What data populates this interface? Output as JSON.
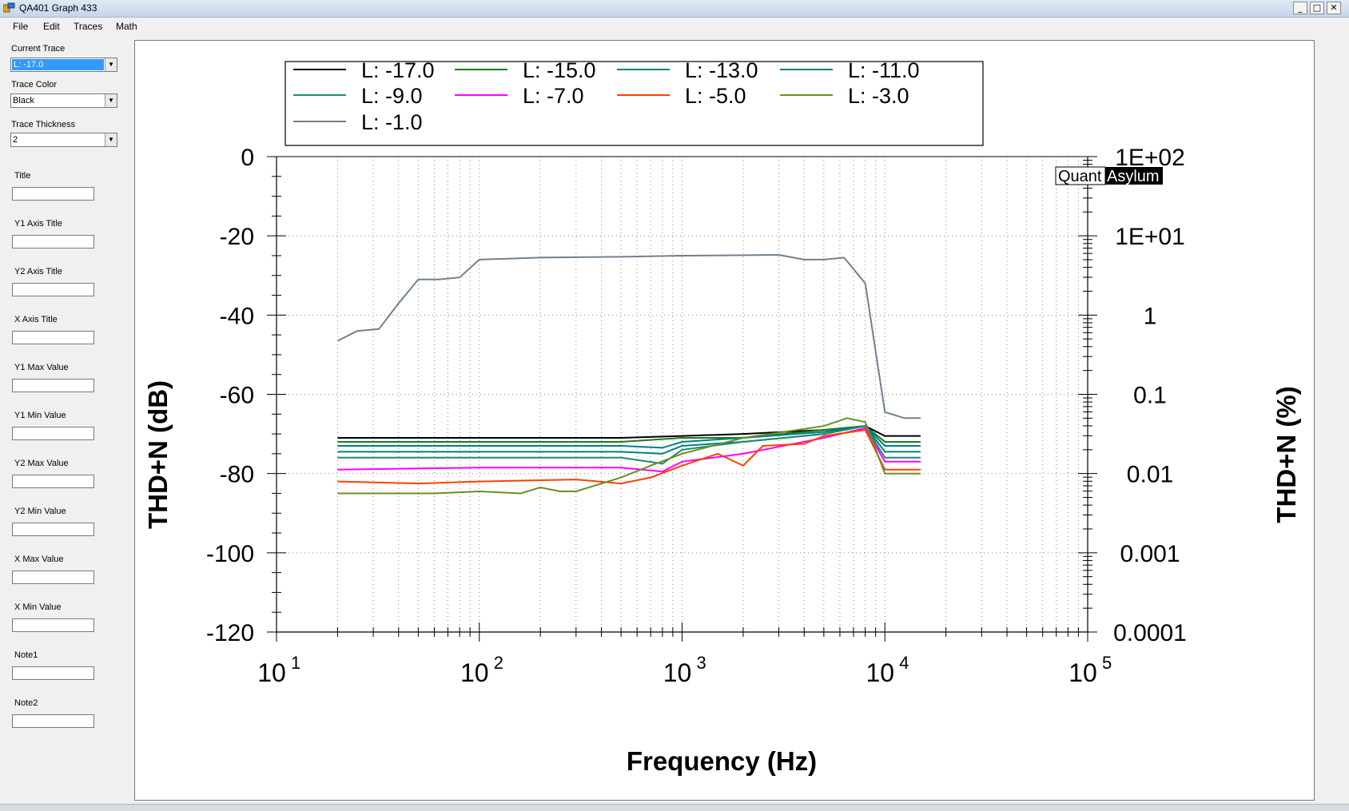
{
  "window": {
    "title": "QA401 Graph 433",
    "buttons": {
      "minimize": "_",
      "maximize": "□",
      "close": "✕"
    }
  },
  "menu": [
    "File",
    "Edit",
    "Traces",
    "Math"
  ],
  "panel": {
    "current_trace_label": "Current Trace",
    "current_trace_value": "L: -17.0",
    "trace_color_label": "Trace Color",
    "trace_color_value": "Black",
    "trace_thickness_label": "Trace Thickness",
    "trace_thickness_value": "2",
    "fields": [
      {
        "label": "Title",
        "value": ""
      },
      {
        "label": "Y1 Axis Title",
        "value": ""
      },
      {
        "label": "Y2 Axis Title",
        "value": ""
      },
      {
        "label": "X Axis Title",
        "value": ""
      },
      {
        "label": "Y1 Max Value",
        "value": ""
      },
      {
        "label": "Y1 Min Value",
        "value": ""
      },
      {
        "label": "Y2 Max Value",
        "value": ""
      },
      {
        "label": "Y2 Min Value",
        "value": ""
      },
      {
        "label": "X Max Value",
        "value": ""
      },
      {
        "label": "X Min Value",
        "value": ""
      },
      {
        "label": "Note1",
        "value": ""
      },
      {
        "label": "Note2",
        "value": ""
      }
    ]
  },
  "logo": {
    "part1": "Quant",
    "part2": "Asylum"
  },
  "colors": {
    "L-17": "#000000",
    "L-15": "#1e7a1e",
    "L-13": "#008080",
    "L-11": "#00807f",
    "L-9": "#1e8a70",
    "L-7": "#ff00ff",
    "L-5": "#ff4000",
    "L-3": "#6b8e23",
    "L-1": "#708090"
  },
  "chart_data": {
    "type": "line",
    "xlabel": "Frequency (Hz)",
    "ylabel": "THD+N (dB)",
    "y2label": "THD+N (%)",
    "xscale": "log",
    "xlim": [
      10,
      100000
    ],
    "ylim": [
      -120,
      0
    ],
    "x_ticks": [
      "10^1",
      "10^2",
      "10^3",
      "10^4",
      "10^5"
    ],
    "x_tick_base": "10",
    "x_tick_exps": [
      "1",
      "2",
      "3",
      "4",
      "5"
    ],
    "y_ticks": [
      "0",
      "-20",
      "-40",
      "-60",
      "-80",
      "-100",
      "-120"
    ],
    "y2_ticks": [
      "1E+02",
      "1E+01",
      "1",
      "0.1",
      "0.01",
      "0.001",
      "0.0001"
    ],
    "grid": true,
    "legend_position": "top",
    "series": [
      {
        "name": "L: -17.0",
        "color": "#000000",
        "x": [
          20,
          100,
          500,
          1000,
          2000,
          5000,
          8000,
          10000,
          15000
        ],
        "values": [
          -71,
          -71,
          -71,
          -70.5,
          -70,
          -69,
          -68,
          -70.5,
          -70.5
        ]
      },
      {
        "name": "L: -15.0",
        "color": "#1e7a1e",
        "x": [
          20,
          100,
          500,
          1000,
          2000,
          5000,
          8000,
          10000,
          15000
        ],
        "values": [
          -72,
          -72,
          -72,
          -71,
          -71,
          -69,
          -68,
          -72,
          -72
        ]
      },
      {
        "name": "L: -13.0",
        "color": "#008080",
        "x": [
          20,
          100,
          500,
          800,
          1000,
          2000,
          5000,
          8000,
          10000,
          15000
        ],
        "values": [
          -73,
          -73,
          -73,
          -73.5,
          -72,
          -71,
          -69.5,
          -68,
          -73,
          -73
        ]
      },
      {
        "name": "L: -11.0",
        "color": "#00807f",
        "x": [
          20,
          100,
          500,
          800,
          1000,
          2000,
          5000,
          8000,
          10000,
          15000
        ],
        "values": [
          -74.5,
          -74.5,
          -74.5,
          -75,
          -73,
          -72,
          -70,
          -68,
          -74.5,
          -74.5
        ]
      },
      {
        "name": "L: -9.0",
        "color": "#1e8a70",
        "x": [
          20,
          100,
          500,
          800,
          1000,
          2000,
          5000,
          8000,
          10000,
          15000
        ],
        "values": [
          -76,
          -76,
          -76,
          -77.5,
          -74,
          -72,
          -70,
          -68,
          -76,
          -76
        ]
      },
      {
        "name": "L: -7.0",
        "color": "#ff00ff",
        "x": [
          20,
          100,
          500,
          800,
          1000,
          2000,
          5000,
          8000,
          10000,
          15000
        ],
        "values": [
          -79,
          -78.5,
          -78.5,
          -79.5,
          -77,
          -75,
          -71,
          -68.5,
          -77,
          -77
        ]
      },
      {
        "name": "L: -5.0",
        "color": "#ff4000",
        "x": [
          20,
          50,
          100,
          300,
          500,
          700,
          1000,
          1500,
          2000,
          2500,
          4000,
          5000,
          8000,
          10000,
          15000
        ],
        "values": [
          -82,
          -82.5,
          -82,
          -81.5,
          -82.5,
          -81,
          -78,
          -75,
          -78,
          -73,
          -72.5,
          -70.5,
          -69,
          -79,
          -79
        ]
      },
      {
        "name": "L: -3.0",
        "color": "#6b8e23",
        "x": [
          20,
          60,
          100,
          160,
          200,
          250,
          300,
          500,
          700,
          1000,
          2000,
          5000,
          6500,
          8000,
          10000,
          15000
        ],
        "values": [
          -85,
          -85,
          -84.5,
          -85,
          -83.5,
          -84.5,
          -84.5,
          -81,
          -78,
          -75,
          -71,
          -68,
          -66,
          -67,
          -80,
          -80
        ]
      },
      {
        "name": "L: -1.0",
        "color": "#708090",
        "x": [
          20,
          25,
          32,
          40,
          50,
          63,
          80,
          100,
          200,
          500,
          1000,
          3000,
          4000,
          5000,
          6300,
          8000,
          10000,
          12500,
          15000
        ],
        "values": [
          -46.5,
          -44,
          -43.5,
          -37,
          -31,
          -31,
          -30.5,
          -26,
          -25.5,
          -25.3,
          -25,
          -24.8,
          -26,
          -26,
          -25.5,
          -32,
          -64.5,
          -66,
          -66
        ]
      }
    ]
  }
}
